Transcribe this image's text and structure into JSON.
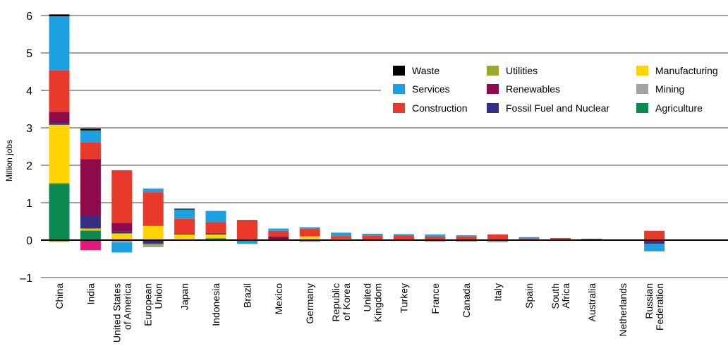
{
  "chart_data": {
    "type": "bar",
    "stacked": true,
    "ylabel": "Million jobs",
    "ylim": [
      -1,
      6
    ],
    "yticks": [
      "–1",
      "0",
      "1",
      "2",
      "3",
      "4",
      "5",
      "6"
    ],
    "grid": "horizontal",
    "legend_position": "top-right",
    "legend": [
      {
        "key": "waste",
        "label": "Waste",
        "color": "#000000"
      },
      {
        "key": "services",
        "label": "Services",
        "color": "#1ba1e2"
      },
      {
        "key": "construction",
        "label": "Construction",
        "color": "#e8392a"
      },
      {
        "key": "utilities",
        "label": "Utilities",
        "color": "#9aaa26"
      },
      {
        "key": "renewables",
        "label": "Renewables",
        "color": "#8e0a4a"
      },
      {
        "key": "fossil",
        "label": "Fossil Fuel and Nuclear",
        "color": "#352e83"
      },
      {
        "key": "manufacturing",
        "label": "Manufacturing",
        "color": "#ffd400"
      },
      {
        "key": "mining",
        "label": "Mining",
        "color": "#9ea3a8"
      },
      {
        "key": "agriculture",
        "label": "Agriculture",
        "color": "#0b8a52"
      }
    ],
    "stack_order": [
      "agriculture",
      "utilities",
      "mining",
      "manufacturing",
      "fossil",
      "renewables",
      "construction",
      "services",
      "waste"
    ],
    "extra_colors": {
      "negative_other": "#e6177a"
    },
    "categories": [
      {
        "label": [
          "China"
        ],
        "values": {
          "agriculture": 1.5,
          "utilities": 0.03,
          "manufacturing": 1.55,
          "fossil": 0.05,
          "renewables": 0.3,
          "construction": 1.1,
          "services": 1.45,
          "waste": 0.05
        },
        "negatives": {
          "mining": -0.03,
          "utilities": -0.02
        }
      },
      {
        "label": [
          "India"
        ],
        "values": {
          "agriculture": 0.25,
          "utilities": 0.03,
          "manufacturing": 0.03,
          "fossil": 0.35,
          "renewables": 1.5,
          "construction": 0.45,
          "services": 0.32,
          "waste": 0.05
        },
        "negatives": {
          "negative_other": -0.27
        }
      },
      {
        "label": [
          "United States",
          "of America"
        ],
        "values": {
          "manufacturing": 0.18,
          "fossil": 0.05,
          "renewables": 0.23,
          "construction": 1.4,
          "services": 0.01
        },
        "negatives": {
          "fossil": -0.02,
          "mining": -0.04,
          "services": -0.27
        }
      },
      {
        "label": [
          "European",
          "Union"
        ],
        "values": {
          "manufacturing": 0.38,
          "construction": 0.9,
          "services": 0.1
        },
        "negatives": {
          "fossil": -0.1,
          "utilities": -0.05,
          "mining": -0.04
        }
      },
      {
        "label": [
          "Japan"
        ],
        "values": {
          "agriculture": 0.02,
          "manufacturing": 0.13,
          "fossil": 0.02,
          "construction": 0.4,
          "services": 0.25,
          "waste": 0.02
        },
        "negatives": {}
      },
      {
        "label": [
          "Indonesia"
        ],
        "values": {
          "agriculture": 0.05,
          "fossil": 0.03,
          "manufacturing": 0.1,
          "construction": 0.3,
          "services": 0.3
        },
        "negatives": {
          "agriculture": -0.02
        }
      },
      {
        "label": [
          "Brazil"
        ],
        "values": {
          "manufacturing": 0.02,
          "construction": 0.5,
          "waste": 0.01
        },
        "negatives": {
          "services": -0.1
        }
      },
      {
        "label": [
          "Mexico"
        ],
        "values": {
          "agriculture": 0.02,
          "renewables": 0.08,
          "construction": 0.15,
          "services": 0.06
        },
        "negatives": {
          "utilities": -0.02
        }
      },
      {
        "label": [
          "Germany"
        ],
        "values": {
          "manufacturing": 0.1,
          "construction": 0.2,
          "services": 0.04
        },
        "negatives": {
          "fossil": -0.02,
          "mining": -0.03
        }
      },
      {
        "label": [
          "Republic",
          "of Korea"
        ],
        "values": {
          "manufacturing": 0.03,
          "construction": 0.08,
          "services": 0.09
        },
        "negatives": {
          "fossil": -0.02
        }
      },
      {
        "label": [
          "United",
          "Kingdom"
        ],
        "values": {
          "construction": 0.12,
          "services": 0.05
        },
        "negatives": {
          "fossil": -0.02
        }
      },
      {
        "label": [
          "Turkey"
        ],
        "values": {
          "construction": 0.13,
          "services": 0.03
        },
        "negatives": {
          "fossil": -0.02
        }
      },
      {
        "label": [
          "France"
        ],
        "values": {
          "construction": 0.1,
          "services": 0.05
        },
        "negatives": {
          "fossil": -0.03
        }
      },
      {
        "label": [
          "Canada"
        ],
        "values": {
          "construction": 0.1,
          "services": 0.03
        },
        "negatives": {
          "renewables": -0.03
        }
      },
      {
        "label": [
          "Italy"
        ],
        "values": {
          "construction": 0.15
        },
        "negatives": {
          "mining": -0.06
        }
      },
      {
        "label": [
          "Spain"
        ],
        "values": {
          "construction": 0.05,
          "services": 0.03
        },
        "negatives": {}
      },
      {
        "label": [
          "South",
          "Africa"
        ],
        "values": {
          "construction": 0.04,
          "waste": 0.01
        },
        "negatives": {
          "fossil": -0.02
        }
      },
      {
        "label": [
          "Australia"
        ],
        "values": {
          "construction": 0.02,
          "waste": 0.01
        },
        "negatives": {}
      },
      {
        "label": [
          "Netherlands"
        ],
        "values": {
          "construction": 0.01
        },
        "negatives": {
          "fossil": -0.01
        }
      },
      {
        "label": [
          "Russian",
          "Federation"
        ],
        "values": {
          "construction": 0.25
        },
        "negatives": {
          "renewables": -0.05,
          "fossil": -0.05,
          "services": -0.2
        }
      }
    ]
  }
}
